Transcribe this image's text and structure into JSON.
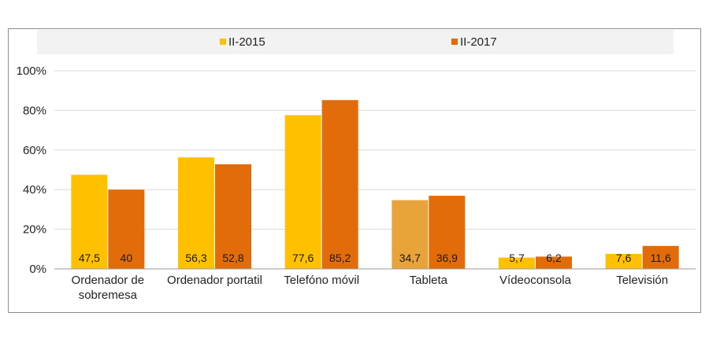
{
  "chart_data": {
    "type": "bar",
    "categories": [
      "Ordenador de sobremesa",
      "Ordenador portatil",
      "Telefóno móvil",
      "Tableta",
      "Vídeoconsola",
      "Televisión"
    ],
    "category_lines": [
      [
        "Ordenador de",
        "sobremesa"
      ],
      [
        "Ordenador portatil"
      ],
      [
        "Telefóno móvil"
      ],
      [
        "Tableta"
      ],
      [
        "Vídeoconsola"
      ],
      [
        "Televisión"
      ]
    ],
    "series": [
      {
        "name": "II-2015",
        "values": [
          47.5,
          56.3,
          77.6,
          34.7,
          5.7,
          7.6
        ],
        "labels": [
          "47,5",
          "56,3",
          "77,6",
          "34,7",
          "5,7",
          "7,6"
        ],
        "color": "#FFC000"
      },
      {
        "name": "II-2017",
        "values": [
          40,
          52.8,
          85.2,
          36.9,
          6.2,
          11.6
        ],
        "labels": [
          "40",
          "52,8",
          "85,2",
          "36,9",
          "6,2",
          "11,6"
        ],
        "color": "#E36C0A"
      }
    ],
    "highlight_bar": {
      "series": 0,
      "category": 3,
      "color": "#E8A33A"
    },
    "ylim": [
      0,
      100
    ],
    "yticks": [
      "0%",
      "20%",
      "40%",
      "60%",
      "80%",
      "100%"
    ],
    "ytick_values": [
      0,
      20,
      40,
      60,
      80,
      100
    ],
    "grid": true,
    "legend_position": "top-center",
    "title": "",
    "xlabel": "",
    "ylabel": ""
  }
}
